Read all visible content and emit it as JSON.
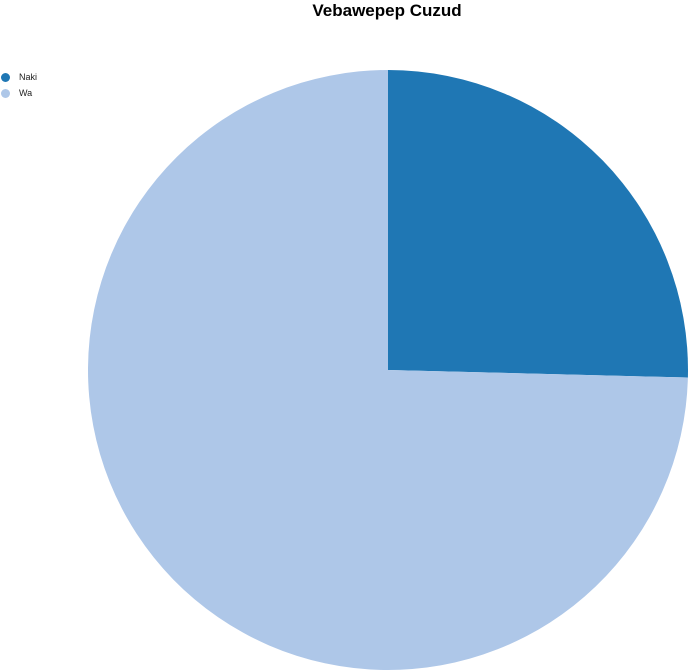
{
  "chart_data": {
    "type": "pie",
    "title": "Vebawepep Cuzud",
    "labels": [
      "Naki",
      "Wa"
    ],
    "values": [
      25.4,
      74.6
    ],
    "colors": [
      "#1f77b4",
      "#aec7e8"
    ],
    "legend_position": "top-left"
  }
}
